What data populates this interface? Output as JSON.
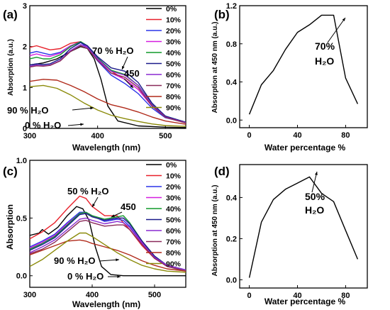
{
  "colors": {
    "0%": "#000000",
    "10%": "#e8202a",
    "20%": "#2b35e8",
    "30%": "#d51ee0",
    "40%": "#119a2a",
    "50%": "#1a1a8a",
    "60%": "#8a2ad0",
    "70%": "#8a2a5a",
    "80%": "#b02a1a",
    "90%": "#8b8b0a"
  },
  "chart_data": [
    {
      "type": "line",
      "panel": "(a)",
      "xlabel": "Wavelength (nm)",
      "ylabel": "Absorption (a.u.)",
      "xlim": [
        300,
        530
      ],
      "ylim": [
        0,
        3
      ],
      "xticks": [
        "300",
        "400",
        "500"
      ],
      "yticks": [
        "0",
        "1",
        "2",
        "3"
      ],
      "legend_position": "top-right",
      "annotations": [
        "70 % H₂O",
        "450",
        "90 % H₂O",
        "0 % H₂O"
      ],
      "series": [
        {
          "name": "0%",
          "x": [
            300,
            320,
            340,
            360,
            375,
            385,
            395,
            405,
            415,
            430,
            460,
            500,
            530
          ],
          "y": [
            1.55,
            1.6,
            1.7,
            1.88,
            2.0,
            1.95,
            1.7,
            1.2,
            0.55,
            0.18,
            0.06,
            0.03,
            0.02
          ]
        },
        {
          "name": "10%",
          "x": [
            300,
            310,
            320,
            330,
            345,
            360,
            375,
            385,
            400,
            420,
            440,
            460,
            480,
            500,
            530
          ],
          "y": [
            1.98,
            2.02,
            1.97,
            1.92,
            1.95,
            2.08,
            2.12,
            2.0,
            1.72,
            1.4,
            1.2,
            0.95,
            0.55,
            0.28,
            0.15
          ]
        },
        {
          "name": "20%",
          "x": [
            300,
            310,
            320,
            330,
            345,
            360,
            375,
            385,
            400,
            420,
            440,
            460,
            480,
            500,
            530
          ],
          "y": [
            1.84,
            1.88,
            1.84,
            1.8,
            1.86,
            2.02,
            2.1,
            1.98,
            1.65,
            1.3,
            1.1,
            0.85,
            0.5,
            0.26,
            0.14
          ]
        },
        {
          "name": "30%",
          "x": [
            300,
            310,
            320,
            330,
            345,
            360,
            375,
            385,
            400,
            420,
            440,
            460,
            480,
            500,
            530
          ],
          "y": [
            1.78,
            1.82,
            1.78,
            1.76,
            1.84,
            2.02,
            2.12,
            2.0,
            1.68,
            1.35,
            1.2,
            0.95,
            0.55,
            0.28,
            0.14
          ]
        },
        {
          "name": "40%",
          "x": [
            300,
            310,
            320,
            330,
            345,
            360,
            375,
            385,
            400,
            420,
            440,
            460,
            480,
            500,
            530
          ],
          "y": [
            1.7,
            1.74,
            1.7,
            1.7,
            1.8,
            2.0,
            2.12,
            2.02,
            1.72,
            1.42,
            1.32,
            1.05,
            0.6,
            0.3,
            0.15
          ]
        },
        {
          "name": "50%",
          "x": [
            300,
            310,
            320,
            330,
            345,
            360,
            375,
            385,
            400,
            420,
            440,
            460,
            480,
            500,
            530
          ],
          "y": [
            1.55,
            1.58,
            1.56,
            1.58,
            1.7,
            1.95,
            2.1,
            2.02,
            1.75,
            1.48,
            1.4,
            1.12,
            0.62,
            0.3,
            0.15
          ]
        },
        {
          "name": "60%",
          "x": [
            300,
            310,
            320,
            330,
            345,
            360,
            375,
            385,
            400,
            420,
            440,
            460,
            480,
            500,
            530
          ],
          "y": [
            1.52,
            1.55,
            1.53,
            1.55,
            1.66,
            1.9,
            2.05,
            1.98,
            1.7,
            1.4,
            1.3,
            1.05,
            0.58,
            0.28,
            0.14
          ]
        },
        {
          "name": "70%",
          "x": [
            300,
            310,
            320,
            330,
            345,
            360,
            375,
            385,
            400,
            420,
            440,
            460,
            480,
            500,
            530
          ],
          "y": [
            1.5,
            1.53,
            1.52,
            1.54,
            1.65,
            1.88,
            2.02,
            1.95,
            1.66,
            1.35,
            1.25,
            1.0,
            0.55,
            0.27,
            0.13
          ]
        },
        {
          "name": "80%",
          "x": [
            300,
            320,
            340,
            360,
            380,
            400,
            420,
            440,
            460,
            480,
            500,
            530
          ],
          "y": [
            1.15,
            1.2,
            1.18,
            1.05,
            0.9,
            0.72,
            0.58,
            0.5,
            0.4,
            0.28,
            0.18,
            0.1
          ]
        },
        {
          "name": "90%",
          "x": [
            300,
            320,
            340,
            360,
            380,
            400,
            420,
            440,
            460,
            480,
            500,
            530
          ],
          "y": [
            1.02,
            1.05,
            0.98,
            0.82,
            0.62,
            0.45,
            0.32,
            0.24,
            0.17,
            0.11,
            0.07,
            0.05
          ]
        }
      ]
    },
    {
      "type": "line",
      "panel": "(b)",
      "xlabel": "Water percentage %",
      "ylabel": "Absorption at 450 nm (a.u.)",
      "xlim": [
        -8,
        98
      ],
      "ylim": [
        -0.08,
        1.2
      ],
      "xticks": [
        "0",
        "40",
        "80"
      ],
      "yticks": [
        "0.0",
        "0.4",
        "0.8",
        "1.2"
      ],
      "annotations": [
        "70%",
        "H₂O"
      ],
      "series": [
        {
          "name": "",
          "x": [
            0,
            10,
            20,
            30,
            40,
            50,
            60,
            70,
            80,
            90
          ],
          "y": [
            0.06,
            0.37,
            0.52,
            0.74,
            0.92,
            1.0,
            1.1,
            1.1,
            0.44,
            0.17
          ]
        }
      ]
    },
    {
      "type": "line",
      "panel": "(c)",
      "xlabel": "Wavelength (nm)",
      "ylabel": "Absorption",
      "xlim": [
        300,
        550
      ],
      "ylim": [
        -0.1,
        1.0
      ],
      "xticks": [
        "300",
        "400",
        "500"
      ],
      "yticks": [
        "0.0",
        "0.5",
        "1.0"
      ],
      "legend_position": "top-right",
      "annotations": [
        "50 % H₂O",
        "450",
        "90 % H₂O",
        "0 % H₂O"
      ],
      "series": [
        {
          "name": "0%",
          "x": [
            300,
            315,
            320,
            330,
            345,
            360,
            375,
            385,
            395,
            405,
            415,
            430,
            450,
            500,
            550
          ],
          "y": [
            0.35,
            0.37,
            0.4,
            0.36,
            0.42,
            0.52,
            0.6,
            0.58,
            0.48,
            0.25,
            0.08,
            0.01,
            0.0,
            0.0,
            0.0
          ]
        },
        {
          "name": "10%",
          "x": [
            300,
            320,
            340,
            360,
            380,
            390,
            400,
            420,
            440,
            460,
            480,
            500,
            520,
            550
          ],
          "y": [
            0.32,
            0.38,
            0.46,
            0.58,
            0.69,
            0.67,
            0.6,
            0.52,
            0.52,
            0.4,
            0.26,
            0.15,
            0.09,
            0.05
          ]
        },
        {
          "name": "20%",
          "x": [
            300,
            320,
            340,
            360,
            380,
            390,
            400,
            420,
            440,
            450,
            460,
            480,
            500,
            520,
            550
          ],
          "y": [
            0.25,
            0.3,
            0.36,
            0.46,
            0.55,
            0.55,
            0.52,
            0.47,
            0.49,
            0.48,
            0.43,
            0.28,
            0.16,
            0.09,
            0.05
          ]
        },
        {
          "name": "30%",
          "x": [
            300,
            320,
            340,
            360,
            380,
            390,
            400,
            420,
            440,
            450,
            460,
            480,
            500,
            520,
            550
          ],
          "y": [
            0.24,
            0.29,
            0.35,
            0.45,
            0.54,
            0.55,
            0.52,
            0.48,
            0.5,
            0.5,
            0.45,
            0.29,
            0.16,
            0.09,
            0.05
          ]
        },
        {
          "name": "40%",
          "x": [
            300,
            320,
            340,
            360,
            380,
            390,
            400,
            420,
            440,
            450,
            460,
            480,
            500,
            520,
            550
          ],
          "y": [
            0.23,
            0.28,
            0.34,
            0.44,
            0.54,
            0.55,
            0.52,
            0.49,
            0.51,
            0.52,
            0.46,
            0.3,
            0.17,
            0.09,
            0.05
          ]
        },
        {
          "name": "50%",
          "x": [
            300,
            320,
            340,
            360,
            380,
            390,
            400,
            420,
            440,
            450,
            460,
            480,
            500,
            520,
            550
          ],
          "y": [
            0.22,
            0.27,
            0.33,
            0.43,
            0.53,
            0.54,
            0.51,
            0.48,
            0.5,
            0.5,
            0.45,
            0.3,
            0.17,
            0.09,
            0.05
          ]
        },
        {
          "name": "60%",
          "x": [
            300,
            320,
            340,
            360,
            380,
            390,
            400,
            420,
            440,
            450,
            460,
            480,
            500,
            520,
            550
          ],
          "y": [
            0.2,
            0.25,
            0.31,
            0.4,
            0.49,
            0.5,
            0.48,
            0.45,
            0.47,
            0.46,
            0.42,
            0.28,
            0.16,
            0.09,
            0.05
          ]
        },
        {
          "name": "70%",
          "x": [
            300,
            320,
            340,
            360,
            380,
            390,
            400,
            420,
            440,
            450,
            460,
            480,
            500,
            520,
            550
          ],
          "y": [
            0.19,
            0.23,
            0.29,
            0.38,
            0.47,
            0.48,
            0.46,
            0.43,
            0.44,
            0.44,
            0.4,
            0.27,
            0.15,
            0.08,
            0.04
          ]
        },
        {
          "name": "80%",
          "x": [
            300,
            320,
            340,
            360,
            380,
            390,
            400,
            420,
            440,
            460,
            480,
            500,
            520,
            550
          ],
          "y": [
            0.18,
            0.22,
            0.26,
            0.3,
            0.31,
            0.3,
            0.28,
            0.25,
            0.22,
            0.18,
            0.13,
            0.09,
            0.06,
            0.04
          ]
        },
        {
          "name": "90%",
          "x": [
            300,
            320,
            340,
            360,
            380,
            390,
            400,
            420,
            440,
            460,
            480,
            500,
            520,
            550
          ],
          "y": [
            0.08,
            0.14,
            0.22,
            0.3,
            0.37,
            0.37,
            0.34,
            0.27,
            0.2,
            0.14,
            0.09,
            0.06,
            0.04,
            0.03
          ]
        }
      ]
    },
    {
      "type": "line",
      "panel": "(d)",
      "xlabel": "Water percentage %",
      "ylabel": "Absorption at 450 nm (a.u.)",
      "xlim": [
        -8,
        98
      ],
      "ylim": [
        -0.04,
        0.56
      ],
      "xticks": [
        "0",
        "40",
        "80"
      ],
      "yticks": [
        "0.0",
        "0.2",
        "0.4"
      ],
      "annotations": [
        "50%",
        "H₂O"
      ],
      "series": [
        {
          "name": "",
          "x": [
            0,
            10,
            20,
            30,
            40,
            50,
            60,
            70,
            80,
            90
          ],
          "y": [
            0.01,
            0.28,
            0.39,
            0.44,
            0.47,
            0.5,
            0.42,
            0.38,
            0.24,
            0.1
          ]
        }
      ]
    }
  ]
}
